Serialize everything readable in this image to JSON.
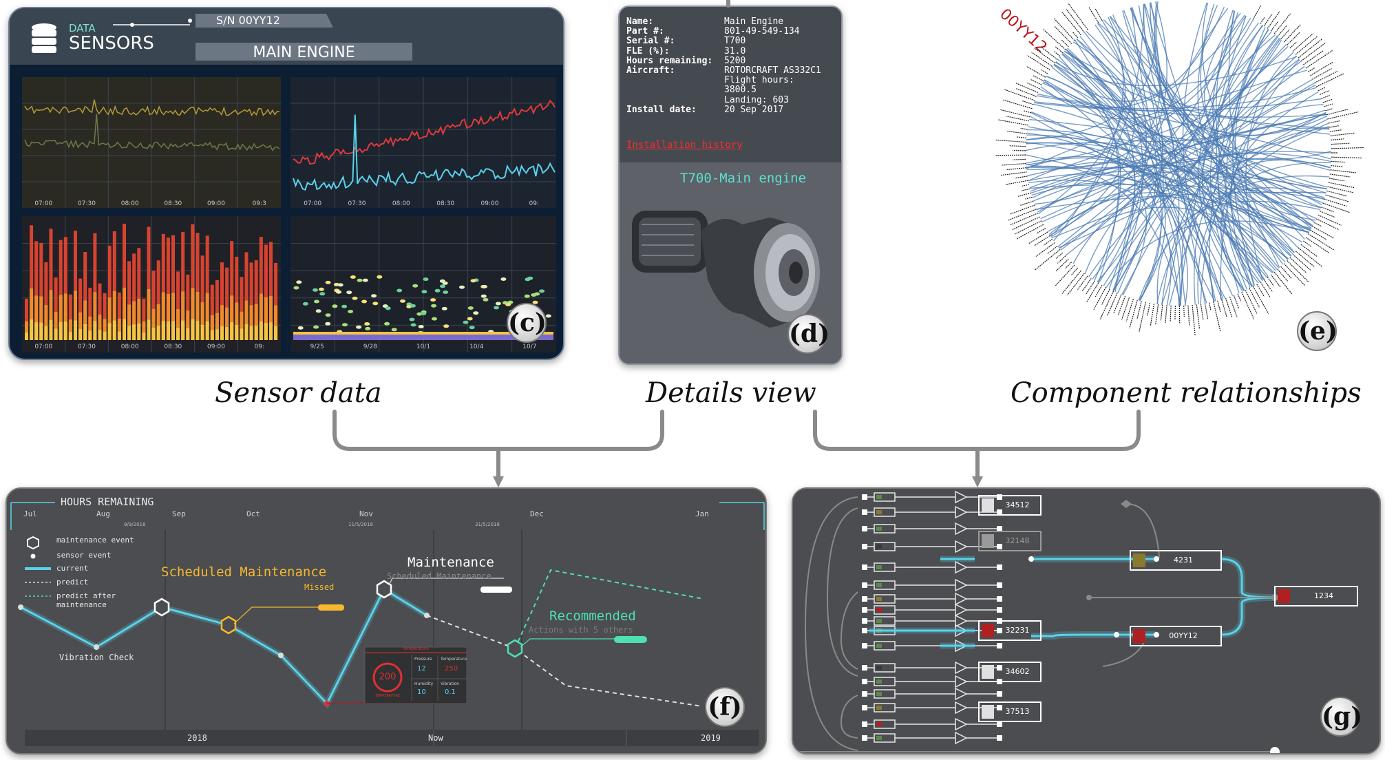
{
  "sensor_panel": {
    "header_small": "DATA",
    "header_big": "SENSORS",
    "serial": "S/N 00YY12",
    "engine": "MAIN ENGINE",
    "time_ticks_a": [
      "07:00",
      "07:30",
      "08:00",
      "08:30",
      "09:00",
      "09:3"
    ],
    "time_ticks_b": [
      "07:00",
      "07:30",
      "08:00",
      "08:30",
      "09:00",
      "09:"
    ],
    "time_ticks_c": [
      "07:00",
      "07:30",
      "08:00",
      "08:30",
      "09:00",
      "09:"
    ],
    "date_ticks": [
      "9/25",
      "9/28",
      "10/1",
      "10/4",
      "10/7"
    ],
    "label": "(c)"
  },
  "details_panel": {
    "rows": [
      {
        "k": "Name:",
        "v": "Main Engine"
      },
      {
        "k": "Part #:",
        "v": "801-49-549-134"
      },
      {
        "k": "Serial #:",
        "v": "T700"
      },
      {
        "k": "FLE (%):",
        "v": "31.0"
      },
      {
        "k": "Hours remaining:",
        "v": "5200"
      },
      {
        "k": "Aircraft:",
        "v": "ROTORCRAFT AS332C1"
      },
      {
        "k": "",
        "v": "Flight hours:"
      },
      {
        "k": "",
        "v": "3800.5"
      },
      {
        "k": "",
        "v": "Landing: 603"
      },
      {
        "k": "Install date:",
        "v": "20 Sep 2017"
      }
    ],
    "link": "Installation history",
    "model_title": "T700-Main engine",
    "label": "(d)"
  },
  "relations_panel": {
    "highlight": "00YY12",
    "label": "(e)"
  },
  "captions": {
    "c": "Sensor data",
    "d": "Details view",
    "e": "Component relationships"
  },
  "timeline_panel": {
    "title": "HOURS REMAINING",
    "months": [
      "Jul",
      "Aug",
      "Sep",
      "Oct",
      "Nov",
      "Dec",
      "Jan"
    ],
    "dates": [
      "9/9/2018",
      "11/5/2018",
      "31/5/2018"
    ],
    "legend": [
      "maintenance event",
      "sensor event",
      "current",
      "predict",
      "predict after",
      "maintenance"
    ],
    "scheduled": "Scheduled Maintenance",
    "missed": "Missed",
    "maintenance": "Maintenance",
    "maintenance_sub": "Scheduled Maintenance",
    "recommended": "Recommended",
    "recommended_sub": "Actions with 5 others",
    "vibration": "Vibration Check",
    "gauge_value": "200",
    "gauge_title": "Temperature",
    "gauge_sub": "TEMPERATURE",
    "m_labels": [
      "Pressure",
      "Temperature",
      "Humidity",
      "Vibration"
    ],
    "m_values": [
      "12",
      "250",
      "10",
      "0.1"
    ],
    "axis": [
      "2018",
      "Now",
      "2019"
    ],
    "label": "(f)"
  },
  "tree_panel": {
    "nodes": [
      "34512",
      "32148",
      "4231",
      "32231",
      "1234",
      "34602",
      "00YY12",
      "37513"
    ],
    "label": "(g)"
  },
  "colors": {
    "cyan": "#59d3ea",
    "orange": "#f5b82e",
    "teal": "#4ee0b0",
    "red_link": "#ff2a2a",
    "chord": "#4a7ab3"
  }
}
